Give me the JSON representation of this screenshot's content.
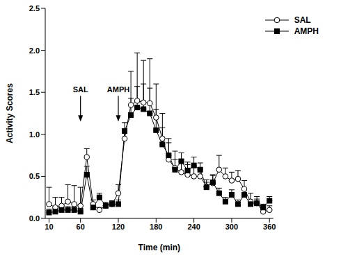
{
  "chart_data": {
    "type": "line",
    "x_label": "Time (min)",
    "y_label": "Activity Scores",
    "x": [
      10,
      20,
      30,
      40,
      50,
      60,
      70,
      80,
      90,
      100,
      110,
      120,
      130,
      140,
      150,
      160,
      170,
      180,
      190,
      200,
      210,
      220,
      230,
      240,
      250,
      260,
      270,
      280,
      290,
      300,
      310,
      320,
      330,
      340,
      350,
      360
    ],
    "xlim": [
      4,
      366
    ],
    "xticks": [
      10,
      60,
      120,
      180,
      240,
      300,
      360
    ],
    "ylim": [
      0,
      2.5
    ],
    "yticks": [
      {
        "value": 0,
        "label": "0.0"
      },
      0.5,
      {
        "value": 1,
        "label": "1.0"
      },
      1.5,
      {
        "value": 2,
        "label": "2.0"
      },
      2.5
    ],
    "legend": "upper right",
    "series": [
      {
        "name": "SAL",
        "color": "#000000",
        "marker": "open_circle",
        "values": [
          0.17,
          0.13,
          0.15,
          0.2,
          0.17,
          0.15,
          0.73,
          0.17,
          0.1,
          0.15,
          0.17,
          0.3,
          0.95,
          1.35,
          1.4,
          1.38,
          1.37,
          1.2,
          0.95,
          0.7,
          0.6,
          0.55,
          0.52,
          0.5,
          0.5,
          0.38,
          0.42,
          0.58,
          0.5,
          0.45,
          0.47,
          0.35,
          0.2,
          0.18,
          0.08,
          0.1
        ],
        "errors": [
          0.2,
          0.12,
          0.1,
          0.2,
          0.22,
          0.22,
          0.1,
          0.05,
          0.03,
          0.03,
          0.03,
          0.1,
          0.1,
          0.4,
          0.57,
          0.5,
          0.53,
          0.4,
          0.3,
          0.25,
          0.2,
          0.15,
          0.12,
          0.12,
          0.1,
          0.08,
          0.1,
          0.17,
          0.1,
          0.1,
          0.1,
          0.1,
          0.1,
          0.08,
          0.05,
          0.05
        ]
      },
      {
        "name": "AMPH",
        "color": "#000000",
        "marker": "square",
        "values": [
          0.07,
          0.08,
          0.1,
          0.1,
          0.1,
          0.08,
          0.52,
          0.13,
          0.25,
          0.15,
          0.17,
          0.17,
          1.04,
          1.23,
          1.32,
          1.3,
          1.25,
          1.05,
          0.88,
          0.75,
          0.58,
          0.68,
          0.57,
          0.63,
          0.58,
          0.37,
          0.43,
          0.3,
          0.2,
          0.28,
          0.17,
          0.28,
          0.17,
          0.18,
          0.13,
          0.21
        ],
        "errors": [
          0.04,
          0.04,
          0.04,
          0.04,
          0.04,
          0.04,
          0.1,
          0.04,
          0.05,
          0.04,
          0.04,
          0.05,
          0.1,
          0.2,
          0.25,
          0.3,
          0.3,
          0.25,
          0.2,
          0.15,
          0.12,
          0.1,
          0.1,
          0.1,
          0.08,
          0.06,
          0.08,
          0.06,
          0.05,
          0.06,
          0.05,
          0.06,
          0.05,
          0.05,
          0.04,
          0.05
        ]
      }
    ],
    "annotations": [
      {
        "text": "SAL",
        "x": 60,
        "y": 1.5
      },
      {
        "text": "AMPH",
        "x": 120,
        "y": 1.5
      }
    ]
  }
}
